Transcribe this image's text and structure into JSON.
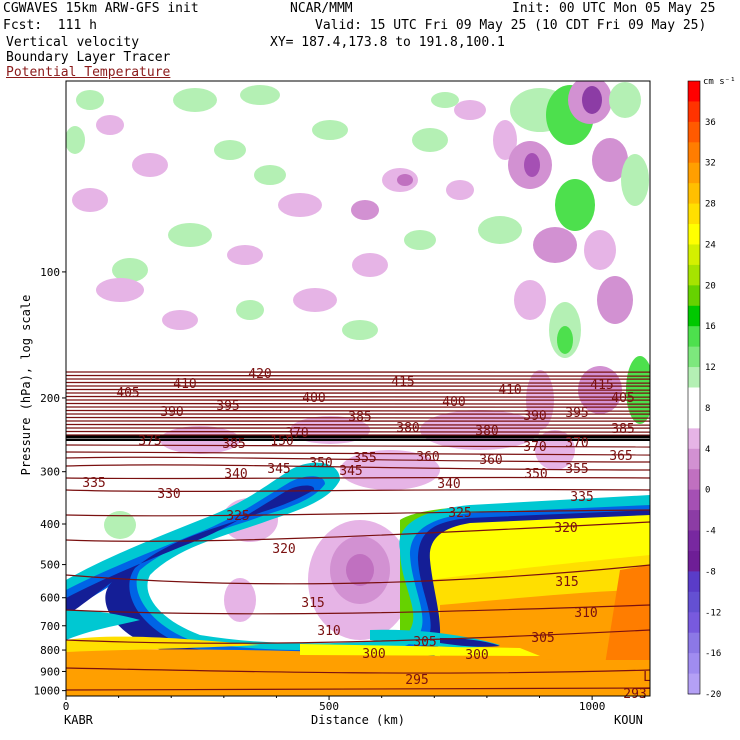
{
  "header": {
    "model": "CGWAVES 15km ARW-GFS init",
    "center": "NCAR/MMM",
    "init": "Init: 00 UTC Mon 05 May 25",
    "fcst": "Fcst:  111 h",
    "valid": "Valid: 15 UTC Fri 09 May 25 (10 CDT Fri 09 May 25)",
    "field1": "Vertical velocity",
    "xy": "XY= 187.4,173.8 to 191.8,100.1",
    "field2": "Boundary Layer Tracer",
    "field3": "Potential Temperature"
  },
  "colors": {
    "theta": "#7a1010",
    "tracer": "#000000"
  },
  "chart_data": {
    "type": "heatmap",
    "xlabel": "Distance (km)",
    "ylabel": "Pressure (hPa), log scale",
    "x_ticks": [
      0,
      500,
      1000
    ],
    "xlim": [
      0,
      1110
    ],
    "y_ticks": [
      100,
      200,
      300,
      400,
      500,
      600,
      700,
      800,
      900,
      1000
    ],
    "ylim": [
      1030,
      35
    ],
    "y_log": true,
    "left_station": "KABR",
    "right_station": "KOUN",
    "colorbar": {
      "units": "cm s⁻¹",
      "labels": [
        36,
        32,
        28,
        24,
        20,
        16,
        12,
        8,
        4,
        0,
        -4,
        -8,
        -12,
        -16,
        -20
      ],
      "colors": [
        "#ff0000",
        "#ff3300",
        "#ff5a00",
        "#ff7d00",
        "#ff9f00",
        "#ffbf00",
        "#ffdf00",
        "#ffff00",
        "#d4f000",
        "#a6e300",
        "#66d200",
        "#00c800",
        "#4de04d",
        "#7de87d",
        "#b4f0b4",
        "#ffffff",
        "#ffffff",
        "#e6b4e6",
        "#d291d2",
        "#c070c0",
        "#a550b4",
        "#8c3ca5",
        "#7828a0",
        "#6e1e96",
        "#5a3cc8",
        "#6450d2",
        "#785ade",
        "#8c78e6",
        "#a08cf0",
        "#b4a0f5"
      ]
    },
    "theta_labels": [
      "420",
      "410",
      "415",
      "405",
      "400",
      "410",
      "415",
      "405",
      "390",
      "395",
      "400",
      "390",
      "395",
      "385",
      "380",
      "380",
      "385",
      "370",
      "375",
      "370",
      "370",
      "365",
      "385",
      "150",
      "355",
      "360",
      "360",
      "350",
      "355",
      "345",
      "340",
      "345",
      "350",
      "340",
      "335",
      "335",
      "330",
      "325",
      "325",
      "320",
      "320",
      "315",
      "315",
      "310",
      "310",
      "305",
      "305",
      "300",
      "300",
      "295",
      "L",
      "293"
    ]
  }
}
